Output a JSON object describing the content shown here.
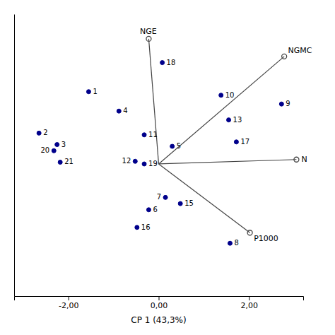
{
  "chart_data": {
    "type": "scatter",
    "xlabel": "CP 1 (43,3%)",
    "xlim": [
      -3.2,
      3.2
    ],
    "ylim": [
      -1.5,
      1.7
    ],
    "xticks": [
      {
        "value": -2.0,
        "label": "-2,00"
      },
      {
        "value": 0.0,
        "label": "0,00"
      },
      {
        "value": 2.0,
        "label": "2,00"
      }
    ],
    "yticks": [],
    "tick_labels": "x",
    "grid": false,
    "series": [
      {
        "type": "scatter",
        "color": "#00008B",
        "marker": "circle",
        "labels": [
          "1",
          "2",
          "3",
          "4",
          "5",
          "6",
          "7",
          "8",
          "9",
          "10",
          "11",
          "12",
          "13",
          "15",
          "16",
          "17",
          "18",
          "19",
          "20",
          "21"
        ],
        "x": [
          -1.55,
          -2.65,
          -2.25,
          -0.88,
          0.3,
          -0.22,
          0.15,
          1.58,
          2.72,
          1.38,
          -0.32,
          -0.52,
          1.55,
          0.48,
          -0.48,
          1.72,
          0.08,
          -0.32,
          -2.32,
          -2.18
        ],
        "values": [
          0.82,
          0.35,
          0.22,
          0.6,
          0.2,
          -0.52,
          -0.38,
          -0.9,
          0.68,
          0.78,
          0.33,
          0.03,
          0.5,
          -0.45,
          -0.72,
          0.25,
          1.15,
          0.0,
          0.15,
          0.02
        ]
      },
      {
        "type": "arrow",
        "color": "#444444",
        "marker": "open-circle",
        "origin": [
          0.0,
          0.0
        ],
        "labels": [
          "NGE",
          "NGMC",
          "N",
          "P1000"
        ],
        "x": [
          -0.22,
          2.78,
          3.05,
          2.02
        ],
        "values": [
          1.42,
          1.22,
          0.05,
          -0.78
        ]
      }
    ]
  }
}
